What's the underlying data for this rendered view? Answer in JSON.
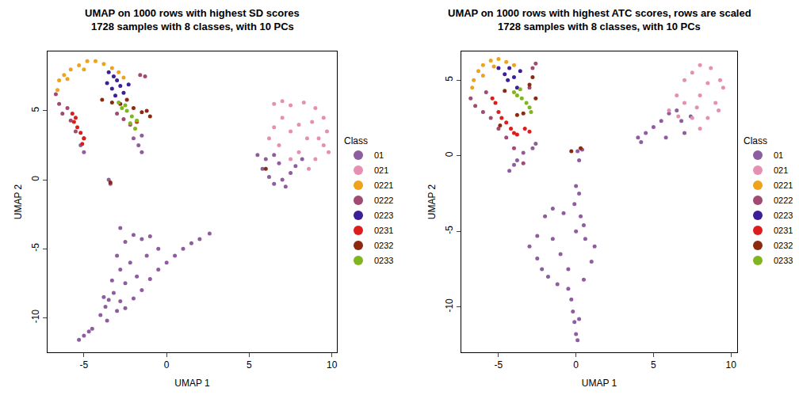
{
  "chart_data": [
    {
      "type": "scatter",
      "title": "UMAP on 1000 rows with highest SD scores",
      "subtitle": "1728 samples with 8 classes, with 10 PCs",
      "x_label": "UMAP 1",
      "y_label": "UMAP 2",
      "legend_title": "Class",
      "legend": "right",
      "marker": "circle",
      "xlim": [
        -7.2,
        10.3
      ],
      "ylim": [
        -12.5,
        9.3
      ],
      "xticks": [
        -5,
        0,
        5,
        10
      ],
      "yticks": [
        -10,
        -5,
        0,
        5
      ],
      "series": [
        {
          "name": "01",
          "color": "#8E5D9F",
          "x": [
            -5.3,
            -5,
            -4.7,
            -4.5,
            -4,
            -3.7,
            -3.5,
            -3.2,
            -3.8,
            -2.8,
            -2.5,
            -2,
            -1.5,
            -1,
            -0.5,
            0,
            0.5,
            1,
            1.5,
            2,
            2.6,
            -2.8,
            -2.5,
            -2,
            -1.5,
            -1,
            -3,
            -2.8,
            -2.2,
            -1.8,
            -3.3,
            -1.2,
            -0.5,
            -2.5,
            -3,
            -3.6,
            5.8,
            6.2,
            6.5,
            7,
            7.5,
            6,
            6.8,
            7.8,
            8.2,
            5.5,
            6.5,
            7.2,
            -1.7,
            -1.5,
            -2,
            -1.5,
            -5,
            -5.2,
            -3.5,
            -3.4
          ],
          "values": [
            -11.6,
            -11.3,
            -11,
            -10.8,
            -9.8,
            -9.2,
            -8.7,
            -8.2,
            -8.5,
            -8.8,
            -9.3,
            -8.6,
            -8,
            -7.2,
            -6.5,
            -6,
            -5.5,
            -5,
            -4.6,
            -4.3,
            -3.9,
            -3.5,
            -4.5,
            -4,
            -4.3,
            -4.1,
            -5.5,
            -6.5,
            -6,
            -7,
            -7.3,
            -5.5,
            -5,
            -7.5,
            -9.5,
            -10.2,
            0.8,
            0.2,
            -0.3,
            0,
            0.5,
            1.5,
            1.2,
            1,
            1.5,
            1.8,
            1.8,
            -0.5,
            2.5,
            2,
            3,
            3.2,
            2,
            2.5,
            0,
            -0.3
          ]
        },
        {
          "name": "021",
          "color": "#E78FB3",
          "x": [
            6.5,
            7,
            7.5,
            8.3,
            9,
            9.5,
            9.7,
            9.5,
            9,
            8.5,
            8,
            7.5,
            7,
            6.5,
            6.2,
            8.8,
            9.2,
            8,
            7.5,
            6.8,
            9.8,
            8.6
          ],
          "values": [
            5.5,
            5.7,
            5.4,
            5.6,
            5.2,
            4.5,
            3.5,
            2.5,
            1.5,
            3,
            4,
            3.5,
            4.5,
            3.8,
            3,
            4.2,
            3,
            2,
            1.5,
            2.5,
            2,
            0.8
          ]
        },
        {
          "name": "0221",
          "color": "#EFA31D",
          "x": [
            -6.6,
            -6.5,
            -6.2,
            -5.8,
            -5.3,
            -4.8,
            -4.3,
            -3.8,
            -3.3,
            -2.9,
            -2.6,
            -6,
            -5
          ],
          "values": [
            6.5,
            7.2,
            7.6,
            8,
            8.3,
            8.6,
            8.6,
            8.4,
            8.1,
            7.8,
            7.4,
            7.3,
            8
          ]
        },
        {
          "name": "0222",
          "color": "#A14A73",
          "x": [
            -6.7,
            -6.5,
            -6.3,
            -5.8,
            -5.5,
            -5,
            -6,
            -2.6,
            -3,
            -1.6,
            -1.3,
            -2.2
          ],
          "values": [
            6.2,
            5.5,
            4.8,
            4.3,
            3.5,
            3,
            5.2,
            4.4,
            4.8,
            7.6,
            7.5,
            4
          ]
        },
        {
          "name": "0223",
          "color": "#3C1E99",
          "x": [
            -3.5,
            -3.2,
            -3,
            -3.3,
            -2.8,
            -3.1,
            -2.6,
            -3.6,
            -2.3
          ],
          "values": [
            7.8,
            7.5,
            7.2,
            6.6,
            6.8,
            6.1,
            6.3,
            7,
            6.9
          ]
        },
        {
          "name": "0231",
          "color": "#DD1C1C",
          "x": [
            -5.7,
            -5.6,
            -5.4,
            -5.2,
            -5,
            -5.5,
            -5.1,
            -1.8
          ],
          "values": [
            4.8,
            4.2,
            3.8,
            3.4,
            3,
            4.5,
            2.6,
            4.2
          ]
        },
        {
          "name": "0232",
          "color": "#8B2A0E",
          "x": [
            -3.9,
            -2.8,
            -2.4,
            -1.2,
            -1,
            -1.5,
            -2,
            -3.3,
            -3.4,
            6
          ],
          "values": [
            5.8,
            5.5,
            5.8,
            5,
            4.6,
            4.9,
            5.2,
            5.6,
            -0.2,
            0.8
          ]
        },
        {
          "name": "0233",
          "color": "#7FB51F",
          "x": [
            -2.9,
            -2.7,
            -2.4,
            -2.1,
            -1.8,
            -1.9,
            -2.2,
            -2.5
          ],
          "values": [
            5.6,
            5.2,
            5,
            4.6,
            4.3,
            3.7,
            4.1,
            5.4
          ]
        }
      ]
    },
    {
      "type": "scatter",
      "title": "UMAP on 1000 rows with highest ATC scores, rows are scaled",
      "subtitle": "1728 samples with 8 classes, with 10 PCs",
      "x_label": "UMAP 1",
      "y_label": "UMAP 2",
      "legend_title": "Class",
      "legend": "right",
      "marker": "circle",
      "xlim": [
        -7.4,
        10.4
      ],
      "ylim": [
        -13,
        6.9
      ],
      "xticks": [
        -5,
        0,
        5,
        10
      ],
      "yticks": [
        -10,
        -5,
        0,
        5
      ],
      "series": [
        {
          "name": "01",
          "color": "#8E5D9F",
          "x": [
            0,
            0.2,
            -0.1,
            0.3,
            0,
            0.5,
            -0.8,
            -1.5,
            -2,
            -2.5,
            -3,
            -2.5,
            -2.2,
            -1.8,
            -1.2,
            -0.5,
            0.5,
            1,
            1.2,
            -1,
            -0.5,
            -0.3,
            -0.2,
            -0.1,
            0,
            0.1,
            0.2,
            -1.5,
            0.6,
            0.1,
            0.4,
            0.2,
            4,
            4.5,
            5,
            5.5,
            6,
            6.5,
            7,
            5.8,
            4.2,
            6.8,
            7.4,
            -2.8,
            -3.4,
            -4,
            -4.3,
            -3.8,
            -2.6
          ],
          "values": [
            -2,
            -2.5,
            -3.2,
            -4,
            -5,
            -4.6,
            -3.8,
            -3.5,
            -4,
            -5.3,
            -6,
            -6.8,
            -7.5,
            -8,
            -8.5,
            -8.8,
            -8.2,
            -7,
            -6,
            -6.5,
            -7.5,
            -9.5,
            -10.3,
            -11,
            -11.8,
            -12.2,
            -10.8,
            -5.5,
            -5.5,
            0.3,
            0.4,
            -0.3,
            1.2,
            1.5,
            1.9,
            2.3,
            2.8,
            3,
            1.5,
            1.2,
            0.9,
            2.3,
            2.6,
            0.5,
            0.2,
            -0.6,
            -1,
            -0.3,
            0.8
          ]
        },
        {
          "name": "021",
          "color": "#E78FB3",
          "x": [
            6,
            6.5,
            7,
            7.5,
            8,
            8.7,
            9.3,
            9.5,
            9,
            8.5,
            8,
            7.5,
            7,
            8,
            8.5,
            9.2,
            6.6,
            7.8
          ],
          "values": [
            3,
            4,
            5,
            5.5,
            6,
            5.8,
            5,
            4.5,
            3.5,
            2.5,
            1.8,
            2.5,
            3.5,
            4,
            4.8,
            3,
            2.6,
            3.2
          ]
        },
        {
          "name": "0221",
          "color": "#EFA31D",
          "x": [
            -6.7,
            -6.6,
            -6.3,
            -6,
            -5.5,
            -5,
            -4.5,
            -4,
            -6,
            -5.3
          ],
          "values": [
            4.5,
            5,
            5.6,
            6,
            6.3,
            6.4,
            6.2,
            6,
            5.3,
            5.9
          ]
        },
        {
          "name": "0222",
          "color": "#A14A73",
          "x": [
            -6.8,
            -6.5,
            -6,
            -5.5,
            -5,
            -4.5,
            -4,
            -3.4,
            -5.8,
            -2.8,
            -2.6,
            -3
          ],
          "values": [
            3.8,
            3.3,
            2.9,
            2.5,
            1.8,
            1.2,
            0.5,
            -0.5,
            4.2,
            5.8,
            6.1,
            4.5
          ]
        },
        {
          "name": "0223",
          "color": "#3C1E99",
          "x": [
            -5,
            -4.6,
            -4.3,
            -4,
            -3.8,
            -4.4,
            -3.6
          ],
          "values": [
            5.8,
            5.4,
            5.8,
            5.2,
            4.5,
            5,
            5.6
          ]
        },
        {
          "name": "0231",
          "color": "#DD1C1C",
          "x": [
            -5.2,
            -5,
            -4.8,
            -4.5,
            -4.2,
            -4,
            -3.8,
            -3.3,
            -3,
            -5.4
          ],
          "values": [
            3.5,
            2.9,
            2.5,
            2.2,
            1.8,
            1.5,
            1.4,
            1.8,
            1.6,
            3.8
          ]
        },
        {
          "name": "0232",
          "color": "#8B2A0E",
          "x": [
            -3,
            -2.6,
            -3.8,
            -3.4,
            -4.6,
            -2.8,
            -4.9,
            -0.3,
            0.3
          ],
          "values": [
            4.7,
            3.8,
            2.7,
            2.8,
            4.3,
            5.2,
            2,
            0.3,
            0.5
          ]
        },
        {
          "name": "0233",
          "color": "#7FB51F",
          "x": [
            -4,
            -3.8,
            -3.5,
            -3.2,
            -3,
            -3.6,
            -2.9
          ],
          "values": [
            4.2,
            4,
            3.8,
            3.5,
            3.2,
            4.4,
            2.9
          ]
        }
      ]
    }
  ]
}
